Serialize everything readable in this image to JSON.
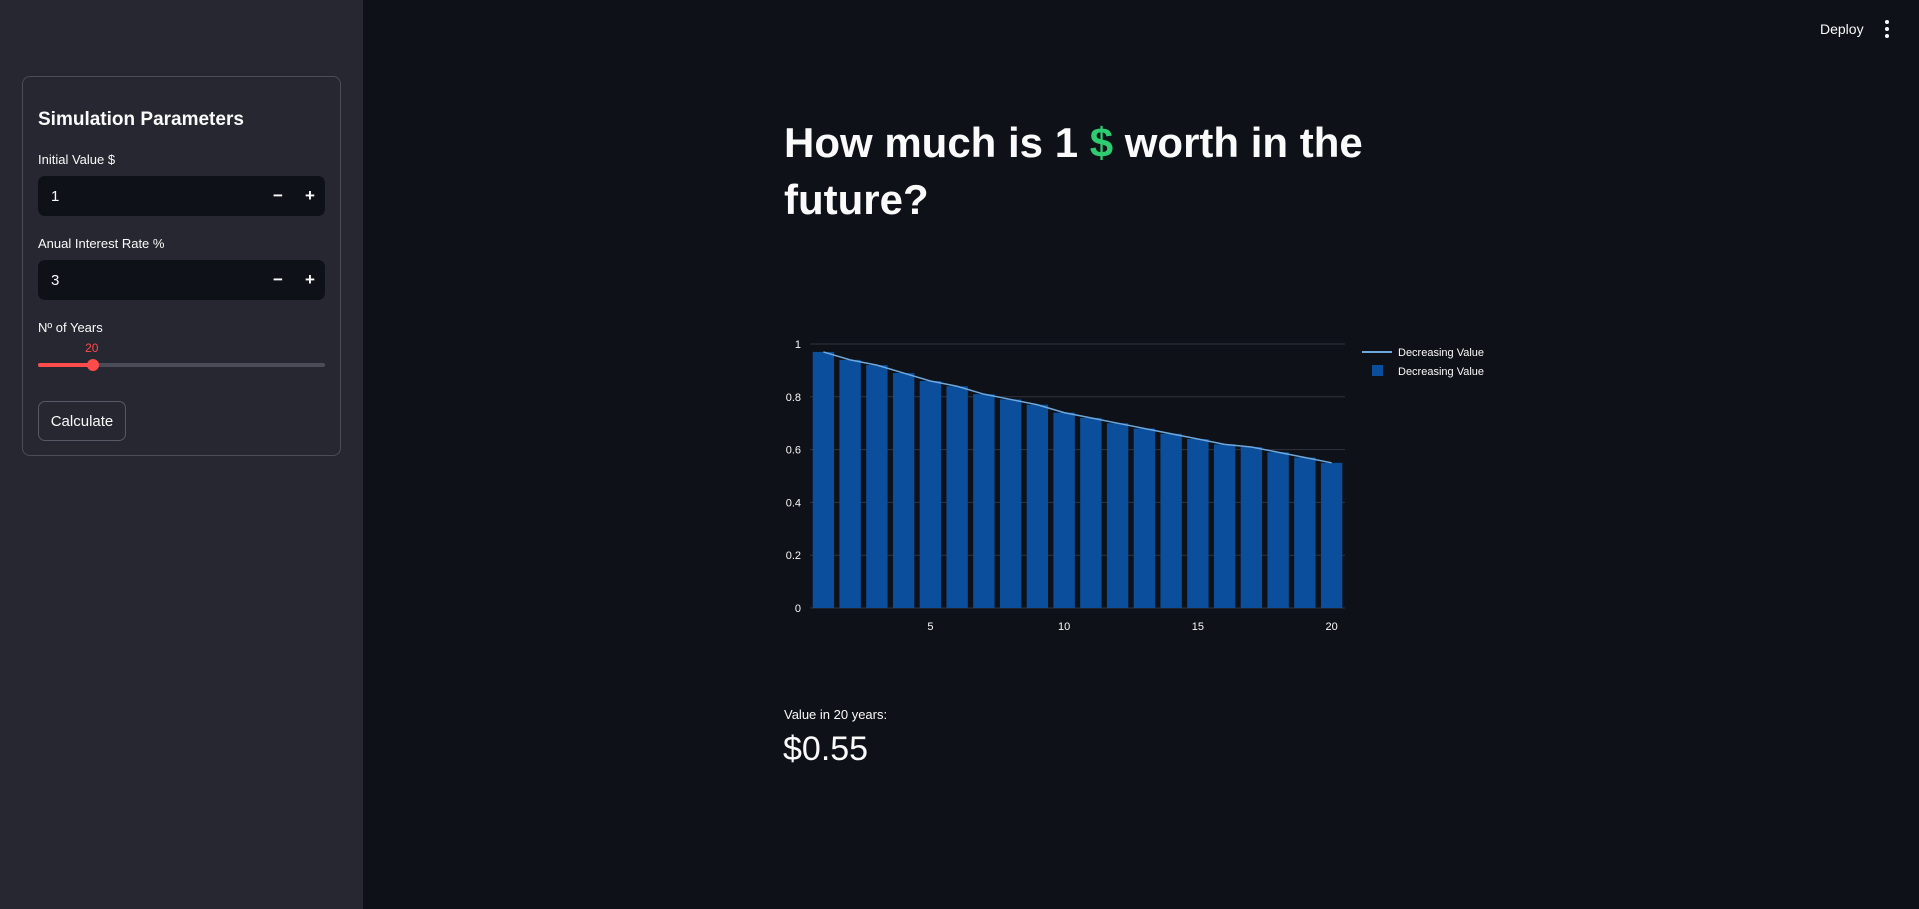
{
  "sidebar": {
    "form_title": "Simulation Parameters",
    "initial_value": {
      "label": "Initial Value $",
      "value": "1",
      "minus": "−",
      "plus": "+"
    },
    "interest_rate": {
      "label": "Anual Interest Rate %",
      "value": "3",
      "minus": "−",
      "plus": "+"
    },
    "years": {
      "label": "Nº of Years",
      "value": "20",
      "min": 1,
      "max": 100,
      "current": 20
    },
    "calculate_label": "Calculate"
  },
  "header": {
    "deploy_label": "Deploy",
    "menu_icon": "vertical-ellipsis-icon"
  },
  "main": {
    "title_part1": "How much is 1 ",
    "title_icon": "$",
    "title_part2": " worth in the future?",
    "metric": {
      "label": "Value in 20 years:",
      "value": "$0.55"
    }
  },
  "colors": {
    "bar": "#0b4f9c",
    "line": "#6fa8dc",
    "accent": "#ff4b4b",
    "dollar": "#2ecc71"
  },
  "chart_data": {
    "type": "bar",
    "x": [
      1,
      2,
      3,
      4,
      5,
      6,
      7,
      8,
      9,
      10,
      11,
      12,
      13,
      14,
      15,
      16,
      17,
      18,
      19,
      20
    ],
    "series": [
      {
        "name": "Decreasing Value",
        "kind": "line",
        "values": [
          0.97,
          0.94,
          0.92,
          0.89,
          0.86,
          0.84,
          0.81,
          0.79,
          0.77,
          0.74,
          0.72,
          0.7,
          0.68,
          0.66,
          0.64,
          0.62,
          0.61,
          0.59,
          0.57,
          0.55
        ]
      },
      {
        "name": "Decreasing Value",
        "kind": "bar",
        "values": [
          0.97,
          0.94,
          0.92,
          0.89,
          0.86,
          0.84,
          0.81,
          0.79,
          0.77,
          0.74,
          0.72,
          0.7,
          0.68,
          0.66,
          0.64,
          0.62,
          0.61,
          0.59,
          0.57,
          0.55
        ]
      }
    ],
    "x_ticks": [
      5,
      10,
      15,
      20
    ],
    "y_ticks": [
      0,
      0.2,
      0.4,
      0.6,
      0.8,
      1
    ],
    "ylim": [
      0,
      1
    ],
    "xlim": [
      0.5,
      20.5
    ],
    "grid": true,
    "legend_position": "top-right"
  }
}
